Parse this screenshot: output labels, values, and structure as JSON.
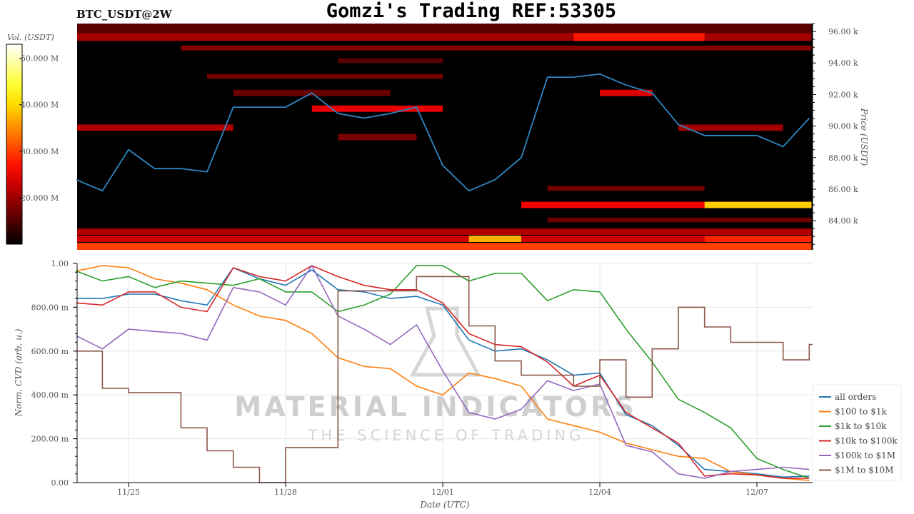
{
  "title": "Gomzi's Trading REF:53305",
  "subtitle": "BTC_USDT@2W",
  "watermark": {
    "line1": "MATERIAL INDICATORS",
    "line2": "THE SCIENCE OF TRADING"
  },
  "colors": {
    "price_line": "#2e86c1",
    "all_orders": "#1f77b4",
    "100_1k": "#ff7f0e",
    "1k_10k": "#2ca02c",
    "10k_100k": "#d62728",
    "100k_1M": "#9467bd",
    "1M_10M": "#8c564b"
  },
  "chart_data": [
    {
      "type": "heatmap",
      "colormap": "hot",
      "ylabel": "Price (USDT)",
      "ylim": [
        82150,
        96500
      ],
      "yticks": [
        84000,
        86000,
        88000,
        90000,
        92000,
        94000,
        96000
      ],
      "ytick_labels": [
        "84.00 k",
        "86.00 k",
        "88.00 k",
        "90.00 k",
        "92.00 k",
        "94.00 k",
        "96.00 k"
      ],
      "colorbar": {
        "label": "Vol. (USDT)",
        "range": [
          10,
          53
        ],
        "ticks": [
          20,
          30,
          40,
          50
        ],
        "tick_labels": [
          "20.000 M",
          "30.000 M",
          "40.000 M",
          "50.000 M"
        ]
      },
      "bands_note_units": "price USDT, date, volume M USDT",
      "bands": [
        {
          "low": 95900,
          "high": 96500,
          "from": "11/24 00:00",
          "to": "12/08 01:00",
          "vol": 14
        },
        {
          "low": 95400,
          "high": 95900,
          "from": "11/24 00:00",
          "to": "12/08 01:00",
          "vol": 19
        },
        {
          "low": 95400,
          "high": 95900,
          "from": "12/03 12:00",
          "to": "12/06 00:00",
          "vol": 27
        },
        {
          "low": 94800,
          "high": 95100,
          "from": "11/26 00:00",
          "to": "12/08 01:00",
          "vol": 17
        },
        {
          "low": 94000,
          "high": 94300,
          "from": "11/29 00:00",
          "to": "12/01 00:00",
          "vol": 14
        },
        {
          "low": 93000,
          "high": 93300,
          "from": "11/26 12:00",
          "to": "12/01 00:00",
          "vol": 16
        },
        {
          "low": 91900,
          "high": 92300,
          "from": "11/27 00:00",
          "to": "11/30 00:00",
          "vol": 15
        },
        {
          "low": 91900,
          "high": 92300,
          "from": "12/04 00:00",
          "to": "12/05 00:00",
          "vol": 23
        },
        {
          "low": 90900,
          "high": 91300,
          "from": "11/28 12:00",
          "to": "12/01 00:00",
          "vol": 24
        },
        {
          "low": 89700,
          "high": 90100,
          "from": "11/24 00:00",
          "to": "11/27 00:00",
          "vol": 20
        },
        {
          "low": 89700,
          "high": 90100,
          "from": "12/05 12:00",
          "to": "12/07 12:00",
          "vol": 19
        },
        {
          "low": 89100,
          "high": 89500,
          "from": "11/29 00:00",
          "to": "11/30 12:00",
          "vol": 16
        },
        {
          "low": 85900,
          "high": 86200,
          "from": "12/03 00:00",
          "to": "12/06 00:00",
          "vol": 16
        },
        {
          "low": 84800,
          "high": 85200,
          "from": "12/02 12:00",
          "to": "12/08 01:00",
          "vol": 25
        },
        {
          "low": 84800,
          "high": 85200,
          "from": "12/06 00:00",
          "to": "12/08 01:00",
          "vol": 40
        },
        {
          "low": 83900,
          "high": 84200,
          "from": "12/03 00:00",
          "to": "12/08 01:00",
          "vol": 15
        },
        {
          "low": 83100,
          "high": 83500,
          "from": "11/24 00:00",
          "to": "12/08 01:00",
          "vol": 20
        },
        {
          "low": 82650,
          "high": 83050,
          "from": "11/24 00:00",
          "to": "12/08 01:00",
          "vol": 22
        },
        {
          "low": 82650,
          "high": 83050,
          "from": "12/01 12:00",
          "to": "12/02 12:00",
          "vol": 38
        },
        {
          "low": 82650,
          "high": 83050,
          "from": "12/06 00:00",
          "to": "12/08 01:00",
          "vol": 28
        },
        {
          "low": 82150,
          "high": 82600,
          "from": "11/24 00:00",
          "to": "12/08 01:00",
          "vol": 30
        }
      ],
      "price_line": {
        "x": [
          "11/24 00:00",
          "11/24 12:00",
          "11/25 00:00",
          "11/25 12:00",
          "11/26 00:00",
          "11/26 12:00",
          "11/27 00:00",
          "11/27 12:00",
          "11/28 00:00",
          "11/28 12:00",
          "11/29 00:00",
          "11/29 12:00",
          "11/30 00:00",
          "11/30 12:00",
          "12/01 00:00",
          "12/01 12:00",
          "12/02 00:00",
          "12/02 12:00",
          "12/03 00:00",
          "12/03 12:00",
          "12/04 00:00",
          "12/04 12:00",
          "12/05 00:00",
          "12/05 12:00",
          "12/06 00:00",
          "12/06 12:00",
          "12/07 00:00",
          "12/07 12:00",
          "12/08 00:00"
        ],
        "y": [
          86600,
          85900,
          88500,
          87300,
          87300,
          87100,
          91200,
          91200,
          91200,
          92100,
          90800,
          90500,
          90800,
          91200,
          87500,
          85900,
          86600,
          88000,
          93100,
          93100,
          93300,
          92600,
          92100,
          90100,
          89400,
          89400,
          89400,
          88700,
          90500
        ]
      }
    },
    {
      "type": "line",
      "xlabel": "Date (UTC)",
      "ylabel": "Norm. CVD (arb. u.)",
      "ylim": [
        0,
        1
      ],
      "xlim": [
        "11/24 00:00",
        "12/08 01:00"
      ],
      "grid": true,
      "legend": "right",
      "yticks": [
        0,
        0.2,
        0.4,
        0.6,
        0.8,
        1.0
      ],
      "ytick_labels": [
        "0.00",
        "200.00 m",
        "400.00 m",
        "600.00 m",
        "800.00 m",
        "1.00"
      ],
      "xticks": [
        "11/25 00:00",
        "11/28 00:00",
        "12/01 00:00",
        "12/04 00:00",
        "12/07 00:00"
      ],
      "xtick_labels": [
        "11/25",
        "11/28",
        "12/01",
        "12/04",
        "12/07"
      ],
      "x": [
        "11/24 00:00",
        "11/24 12:00",
        "11/25 00:00",
        "11/25 12:00",
        "11/26 00:00",
        "11/26 12:00",
        "11/27 00:00",
        "11/27 12:00",
        "11/28 00:00",
        "11/28 12:00",
        "11/29 00:00",
        "11/29 12:00",
        "11/30 00:00",
        "11/30 12:00",
        "12/01 00:00",
        "12/01 12:00",
        "12/02 00:00",
        "12/02 12:00",
        "12/03 00:00",
        "12/03 12:00",
        "12/04 00:00",
        "12/04 12:00",
        "12/05 00:00",
        "12/05 12:00",
        "12/06 00:00",
        "12/06 12:00",
        "12/07 00:00",
        "12/07 12:00",
        "12/08 00:00"
      ],
      "series": [
        {
          "name": "all orders",
          "color_key": "all_orders",
          "step": false,
          "values": [
            0.84,
            0.84,
            0.86,
            0.86,
            0.83,
            0.81,
            0.98,
            0.93,
            0.9,
            0.97,
            0.88,
            0.87,
            0.84,
            0.85,
            0.81,
            0.65,
            0.6,
            0.61,
            0.56,
            0.49,
            0.5,
            0.31,
            0.26,
            0.17,
            0.06,
            0.05,
            0.04,
            0.025,
            0.03
          ]
        },
        {
          "name": "$100 to $1k",
          "color_key": "100_1k",
          "step": false,
          "values": [
            0.965,
            0.99,
            0.98,
            0.93,
            0.91,
            0.88,
            0.81,
            0.76,
            0.74,
            0.68,
            0.57,
            0.53,
            0.52,
            0.44,
            0.4,
            0.5,
            0.475,
            0.44,
            0.29,
            0.26,
            0.23,
            0.18,
            0.15,
            0.12,
            0.11,
            0.05,
            0.035,
            0.02,
            0.01
          ]
        },
        {
          "name": "$1k to $10k",
          "color_key": "1k_10k",
          "step": false,
          "values": [
            0.965,
            0.92,
            0.94,
            0.89,
            0.92,
            0.91,
            0.9,
            0.93,
            0.87,
            0.87,
            0.78,
            0.81,
            0.86,
            0.99,
            0.99,
            0.92,
            0.955,
            0.955,
            0.83,
            0.88,
            0.87,
            0.7,
            0.55,
            0.38,
            0.32,
            0.25,
            0.11,
            0.06,
            0.02
          ]
        },
        {
          "name": "$10k to $100k",
          "color_key": "10k_100k",
          "step": false,
          "values": [
            0.82,
            0.81,
            0.87,
            0.87,
            0.8,
            0.78,
            0.98,
            0.94,
            0.92,
            0.99,
            0.94,
            0.9,
            0.88,
            0.88,
            0.82,
            0.68,
            0.63,
            0.62,
            0.55,
            0.44,
            0.49,
            0.32,
            0.25,
            0.18,
            0.03,
            0.04,
            0.035,
            0.02,
            0.02
          ]
        },
        {
          "name": "$100k to $1M",
          "color_key": "100k_1M",
          "step": false,
          "values": [
            0.67,
            0.61,
            0.7,
            0.69,
            0.68,
            0.65,
            0.89,
            0.87,
            0.81,
            0.99,
            0.76,
            0.7,
            0.63,
            0.72,
            0.51,
            0.32,
            0.29,
            0.335,
            0.465,
            0.42,
            0.45,
            0.17,
            0.14,
            0.04,
            0.02,
            0.05,
            0.06,
            0.07,
            0.06
          ]
        },
        {
          "name": "$1M to $10M",
          "color_key": "1M_10M",
          "step": true,
          "values": [
            0.6,
            0.43,
            0.41,
            0.41,
            0.25,
            0.145,
            0.07,
            0.0,
            0.16,
            0.16,
            0.875,
            0.875,
            0.875,
            0.94,
            0.94,
            0.715,
            0.555,
            0.49,
            0.49,
            0.44,
            0.56,
            0.39,
            0.61,
            0.8,
            0.71,
            0.64,
            0.64,
            0.56,
            0.63
          ]
        }
      ]
    }
  ]
}
